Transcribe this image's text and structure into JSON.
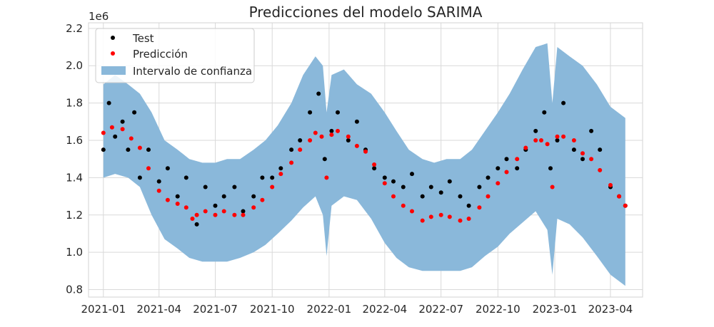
{
  "chart_data": {
    "type": "scatter",
    "title": "Predicciones del modelo SARIMA",
    "offset_label": "1e6",
    "xlabel": "",
    "ylabel": "",
    "x_ticks": [
      "2021-01",
      "2021-04",
      "2021-07",
      "2021-10",
      "2022-01",
      "2022-04",
      "2022-07",
      "2022-10",
      "2023-01",
      "2023-04"
    ],
    "y_ticks": [
      0.8,
      1.0,
      1.2,
      1.4,
      1.6,
      1.8,
      2.0,
      2.2
    ],
    "y_tick_labels": [
      "0.8",
      "1.0",
      "1.2",
      "1.4",
      "1.6",
      "1.8",
      "2.0",
      "2.2"
    ],
    "xlim": [
      "2020-12-08",
      "2023-05-23"
    ],
    "ylim": [
      0.76,
      2.23
    ],
    "grid": true,
    "legend_position": "top-left",
    "legend": [
      {
        "label": "Test",
        "kind": "marker",
        "color": "#000000"
      },
      {
        "label": "Predicción",
        "kind": "marker",
        "color": "#ff0000"
      },
      {
        "label": "Intervalo de confianza",
        "kind": "patch",
        "color": "#8ab8da"
      }
    ],
    "colors": {
      "test": "#000000",
      "prediction": "#ff0000",
      "interval": "#8ab8da",
      "grid": "#d9d9d9"
    },
    "series": [
      {
        "name": "Predicción",
        "x": [
          "2021-01-01",
          "2021-01-15",
          "2021-02-01",
          "2021-02-15",
          "2021-03-01",
          "2021-03-15",
          "2021-04-01",
          "2021-04-15",
          "2021-05-01",
          "2021-05-15",
          "2021-05-25",
          "2021-06-01",
          "2021-06-15",
          "2021-07-01",
          "2021-07-15",
          "2021-08-01",
          "2021-08-15",
          "2021-09-01",
          "2021-09-15",
          "2021-10-01",
          "2021-10-15",
          "2021-11-01",
          "2021-11-15",
          "2021-12-01",
          "2021-12-10",
          "2021-12-20",
          "2021-12-28",
          "2022-01-05",
          "2022-01-15",
          "2022-02-01",
          "2022-02-15",
          "2022-03-01",
          "2022-03-15",
          "2022-04-01",
          "2022-04-15",
          "2022-05-01",
          "2022-05-15",
          "2022-06-01",
          "2022-06-15",
          "2022-07-01",
          "2022-07-15",
          "2022-08-01",
          "2022-08-15",
          "2022-09-01",
          "2022-09-15",
          "2022-10-01",
          "2022-10-15",
          "2022-11-01",
          "2022-11-15",
          "2022-12-01",
          "2022-12-10",
          "2022-12-20",
          "2022-12-28",
          "2023-01-05",
          "2023-01-15",
          "2023-02-01",
          "2023-02-15",
          "2023-03-01",
          "2023-03-15",
          "2023-04-01",
          "2023-04-15",
          "2023-04-25"
        ],
        "values": [
          1.64,
          1.67,
          1.66,
          1.61,
          1.56,
          1.45,
          1.33,
          1.28,
          1.26,
          1.24,
          1.18,
          1.2,
          1.22,
          1.2,
          1.22,
          1.2,
          1.2,
          1.24,
          1.28,
          1.35,
          1.42,
          1.48,
          1.55,
          1.6,
          1.64,
          1.62,
          1.4,
          1.63,
          1.65,
          1.62,
          1.57,
          1.54,
          1.47,
          1.37,
          1.3,
          1.25,
          1.22,
          1.17,
          1.19,
          1.2,
          1.19,
          1.17,
          1.18,
          1.24,
          1.3,
          1.37,
          1.43,
          1.5,
          1.56,
          1.6,
          1.6,
          1.58,
          1.35,
          1.62,
          1.62,
          1.6,
          1.53,
          1.5,
          1.44,
          1.36,
          1.3,
          1.25
        ]
      },
      {
        "name": "Test",
        "x": [
          "2021-01-01",
          "2021-01-10",
          "2021-01-20",
          "2021-02-01",
          "2021-02-10",
          "2021-02-20",
          "2021-03-01",
          "2021-03-15",
          "2021-04-01",
          "2021-04-15",
          "2021-05-01",
          "2021-05-15",
          "2021-06-01",
          "2021-06-15",
          "2021-07-01",
          "2021-07-15",
          "2021-08-01",
          "2021-08-15",
          "2021-09-01",
          "2021-09-15",
          "2021-10-01",
          "2021-10-15",
          "2021-11-01",
          "2021-11-15",
          "2021-12-01",
          "2021-12-15",
          "2021-12-25",
          "2022-01-05",
          "2022-01-15",
          "2022-02-01",
          "2022-02-15",
          "2022-03-01",
          "2022-03-15",
          "2022-04-01",
          "2022-04-15",
          "2022-05-01",
          "2022-05-15",
          "2022-06-01",
          "2022-06-15",
          "2022-07-01",
          "2022-07-15",
          "2022-08-01",
          "2022-08-15",
          "2022-09-01",
          "2022-09-15",
          "2022-10-01",
          "2022-10-15",
          "2022-11-01",
          "2022-11-15",
          "2022-12-01",
          "2022-12-15",
          "2022-12-25",
          "2023-01-05",
          "2023-01-15",
          "2023-02-01",
          "2023-02-15",
          "2023-03-01",
          "2023-03-15",
          "2023-04-01",
          "2023-04-15",
          "2023-04-25"
        ],
        "values": [
          1.55,
          1.8,
          1.62,
          1.7,
          1.55,
          1.75,
          1.4,
          1.55,
          1.38,
          1.45,
          1.3,
          1.4,
          1.15,
          1.35,
          1.25,
          1.3,
          1.35,
          1.22,
          1.3,
          1.4,
          1.4,
          1.45,
          1.55,
          1.6,
          1.75,
          1.85,
          1.5,
          1.65,
          1.75,
          1.6,
          1.7,
          1.55,
          1.45,
          1.4,
          1.38,
          1.35,
          1.42,
          1.3,
          1.35,
          1.32,
          1.38,
          1.3,
          1.25,
          1.35,
          1.4,
          1.45,
          1.5,
          1.45,
          1.55,
          1.65,
          1.75,
          1.45,
          1.6,
          1.8,
          1.55,
          1.5,
          1.65,
          1.55,
          1.35,
          1.3,
          1.25
        ]
      }
    ],
    "interval": {
      "x": [
        "2021-01-01",
        "2021-01-20",
        "2021-02-10",
        "2021-03-01",
        "2021-03-20",
        "2021-04-10",
        "2021-05-01",
        "2021-05-20",
        "2021-06-10",
        "2021-07-01",
        "2021-07-20",
        "2021-08-10",
        "2021-09-01",
        "2021-09-20",
        "2021-10-10",
        "2021-11-01",
        "2021-11-20",
        "2021-12-10",
        "2021-12-22",
        "2021-12-28",
        "2022-01-05",
        "2022-01-25",
        "2022-02-15",
        "2022-03-10",
        "2022-04-01",
        "2022-04-20",
        "2022-05-10",
        "2022-06-01",
        "2022-06-20",
        "2022-07-10",
        "2022-08-01",
        "2022-08-20",
        "2022-09-10",
        "2022-10-01",
        "2022-10-20",
        "2022-11-10",
        "2022-12-01",
        "2022-12-20",
        "2022-12-28",
        "2023-01-05",
        "2023-01-25",
        "2023-02-15",
        "2023-03-10",
        "2023-04-01",
        "2023-04-25"
      ],
      "upper": [
        1.9,
        1.95,
        1.9,
        1.85,
        1.75,
        1.6,
        1.55,
        1.5,
        1.48,
        1.48,
        1.5,
        1.5,
        1.55,
        1.6,
        1.68,
        1.8,
        1.95,
        2.05,
        2.0,
        1.75,
        1.95,
        1.98,
        1.9,
        1.85,
        1.75,
        1.65,
        1.55,
        1.5,
        1.48,
        1.5,
        1.5,
        1.55,
        1.65,
        1.75,
        1.85,
        1.98,
        2.1,
        2.12,
        1.8,
        2.1,
        2.05,
        2.0,
        1.9,
        1.78,
        1.72
      ],
      "lower": [
        1.4,
        1.42,
        1.4,
        1.35,
        1.2,
        1.07,
        1.02,
        0.97,
        0.95,
        0.95,
        0.95,
        0.97,
        1.0,
        1.04,
        1.1,
        1.17,
        1.24,
        1.3,
        1.2,
        0.98,
        1.25,
        1.3,
        1.28,
        1.18,
        1.05,
        0.97,
        0.92,
        0.9,
        0.9,
        0.9,
        0.9,
        0.92,
        0.98,
        1.03,
        1.1,
        1.16,
        1.22,
        1.12,
        0.88,
        1.18,
        1.15,
        1.08,
        0.98,
        0.88,
        0.82
      ]
    }
  }
}
